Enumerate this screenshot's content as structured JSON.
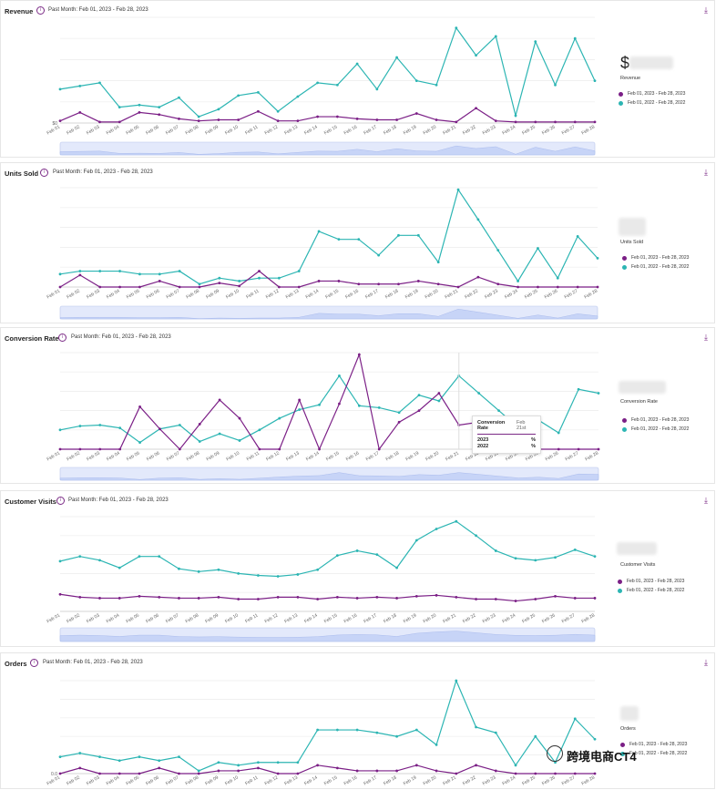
{
  "colors": {
    "y2023": "#7b1f86",
    "y2022": "#2cb5b3",
    "accent": "#7b2a86"
  },
  "period": "Past Month: Feb 01, 2023 - Feb 28, 2023",
  "legend": {
    "y2023": "Feb 01, 2023 - Feb 28, 2023",
    "y2022": "Feb 01, 2022 - Feb 28, 2022"
  },
  "tooltip": {
    "title": "Conversion Rate",
    "date": "Feb 21st",
    "row1": "2023",
    "row2": "2022",
    "pct": "%"
  },
  "watermark": "跨境电商CT4",
  "panels": [
    {
      "key": "revenue",
      "title": "Revenue",
      "value": "$",
      "value_label": "Revenue"
    },
    {
      "key": "units",
      "title": "Units Sold",
      "value": "",
      "value_label": "Units Sold"
    },
    {
      "key": "conversion",
      "title": "Conversion Rate",
      "value": "",
      "value_label": "Conversion Rate"
    },
    {
      "key": "visits",
      "title": "Customer Visits",
      "value": "",
      "value_label": "Customer Visits"
    },
    {
      "key": "orders",
      "title": "Orders",
      "value": "",
      "value_label": "Orders"
    }
  ],
  "chart_data": [
    {
      "type": "line",
      "title": "Revenue",
      "y_tick_labels": [
        "$0"
      ],
      "categories": [
        "Feb 01",
        "Feb 02",
        "Feb 03",
        "Feb 04",
        "Feb 05",
        "Feb 06",
        "Feb 07",
        "Feb 08",
        "Feb 09",
        "Feb 10",
        "Feb 11",
        "Feb 12",
        "Feb 13",
        "Feb 14",
        "Feb 15",
        "Feb 16",
        "Feb 17",
        "Feb 18",
        "Feb 19",
        "Feb 20",
        "Feb 21",
        "Feb 22",
        "Feb 23",
        "Feb 24",
        "Feb 25",
        "Feb 26",
        "Feb 27",
        "Feb 28"
      ],
      "ylim": [
        0,
        100
      ],
      "series": [
        {
          "name": "Feb 01, 2023 - Feb 28, 2023",
          "values": [
            2,
            10,
            1,
            1,
            10,
            8,
            4,
            2,
            3,
            3,
            11,
            2,
            2,
            6,
            6,
            4,
            3,
            3,
            9,
            3,
            1,
            14,
            2,
            1,
            1,
            1,
            1,
            1
          ]
        },
        {
          "name": "Feb 01, 2022 - Feb 28, 2022",
          "values": [
            32,
            35,
            38,
            15,
            17,
            15,
            24,
            6,
            13,
            26,
            29,
            11,
            25,
            38,
            36,
            56,
            32,
            62,
            40,
            36,
            90,
            64,
            82,
            7,
            77,
            36,
            80,
            40
          ]
        }
      ]
    },
    {
      "type": "line",
      "title": "Units Sold",
      "y_tick_labels": [],
      "categories": [
        "Feb 01",
        "Feb 02",
        "Feb 03",
        "Feb 04",
        "Feb 05",
        "Feb 06",
        "Feb 07",
        "Feb 08",
        "Feb 09",
        "Feb 10",
        "Feb 11",
        "Feb 12",
        "Feb 13",
        "Feb 14",
        "Feb 15",
        "Feb 16",
        "Feb 17",
        "Feb 18",
        "Feb 19",
        "Feb 20",
        "Feb 21",
        "Feb 22",
        "Feb 23",
        "Feb 24",
        "Feb 25",
        "Feb 26",
        "Feb 27",
        "Feb 28"
      ],
      "ylim": [
        0,
        100
      ],
      "series": [
        {
          "name": "Feb 01, 2023 - Feb 28, 2023",
          "values": [
            0,
            12,
            0,
            0,
            0,
            6,
            0,
            0,
            4,
            1,
            16,
            0,
            0,
            6,
            6,
            3,
            3,
            3,
            6,
            3,
            0,
            10,
            3,
            0,
            0,
            0,
            0,
            0
          ]
        },
        {
          "name": "Feb 01, 2022 - Feb 28, 2022",
          "values": [
            13,
            16,
            16,
            16,
            13,
            13,
            16,
            3,
            9,
            6,
            9,
            9,
            16,
            56,
            48,
            48,
            32,
            52,
            52,
            25,
            98,
            68,
            37,
            6,
            39,
            9,
            51,
            29
          ]
        }
      ]
    },
    {
      "type": "line",
      "title": "Conversion Rate",
      "y_tick_labels": [],
      "categories": [
        "Feb 01",
        "Feb 02",
        "Feb 03",
        "Feb 04",
        "Feb 05",
        "Feb 06",
        "Feb 07",
        "Feb 08",
        "Feb 09",
        "Feb 10",
        "Feb 11",
        "Feb 12",
        "Feb 13",
        "Feb 14",
        "Feb 15",
        "Feb 16",
        "Feb 17",
        "Feb 18",
        "Feb 19",
        "Feb 20",
        "Feb 21",
        "Feb 22",
        "Feb 23",
        "Feb 24",
        "Feb 25",
        "Feb 26",
        "Feb 27",
        "Feb 28"
      ],
      "ylim": [
        0,
        100
      ],
      "series": [
        {
          "name": "Feb 01, 2023 - Feb 28, 2023",
          "values": [
            0,
            0,
            0,
            0,
            44,
            21,
            0,
            26,
            51,
            32,
            0,
            0,
            51,
            0,
            47,
            98,
            0,
            28,
            40,
            58,
            25,
            28,
            0,
            0,
            0,
            0,
            0,
            0
          ]
        },
        {
          "name": "Feb 01, 2022 - Feb 28, 2022",
          "values": [
            20,
            24,
            25,
            22,
            7,
            21,
            25,
            8,
            16,
            9,
            20,
            32,
            41,
            46,
            76,
            45,
            43,
            38,
            56,
            50,
            76,
            58,
            40,
            22,
            30,
            17,
            62,
            58
          ]
        }
      ]
    },
    {
      "type": "line",
      "title": "Customer Visits",
      "y_tick_labels": [],
      "categories": [
        "Feb 01",
        "Feb 02",
        "Feb 03",
        "Feb 04",
        "Feb 05",
        "Feb 06",
        "Feb 07",
        "Feb 08",
        "Feb 09",
        "Feb 10",
        "Feb 11",
        "Feb 12",
        "Feb 13",
        "Feb 14",
        "Feb 15",
        "Feb 16",
        "Feb 17",
        "Feb 18",
        "Feb 19",
        "Feb 20",
        "Feb 21",
        "Feb 22",
        "Feb 23",
        "Feb 24",
        "Feb 25",
        "Feb 26",
        "Feb 27",
        "Feb 28"
      ],
      "ylim": [
        0,
        100
      ],
      "series": [
        {
          "name": "Feb 01, 2023 - Feb 28, 2023",
          "values": [
            18,
            15,
            14,
            14,
            16,
            15,
            14,
            14,
            15,
            13,
            13,
            15,
            15,
            13,
            15,
            14,
            15,
            14,
            16,
            17,
            15,
            13,
            13,
            11,
            13,
            16,
            14,
            14
          ]
        },
        {
          "name": "Feb 01, 2022 - Feb 28, 2022",
          "values": [
            53,
            58,
            54,
            46,
            58,
            58,
            45,
            42,
            44,
            40,
            38,
            37,
            39,
            44,
            59,
            64,
            60,
            46,
            75,
            87,
            95,
            80,
            64,
            56,
            54,
            57,
            65,
            58
          ]
        }
      ]
    },
    {
      "type": "line",
      "title": "Orders",
      "y_tick_labels": [
        "0.0"
      ],
      "categories": [
        "Feb 01",
        "Feb 02",
        "Feb 03",
        "Feb 04",
        "Feb 05",
        "Feb 06",
        "Feb 07",
        "Feb 08",
        "Feb 09",
        "Feb 10",
        "Feb 11",
        "Feb 12",
        "Feb 13",
        "Feb 14",
        "Feb 15",
        "Feb 16",
        "Feb 17",
        "Feb 18",
        "Feb 19",
        "Feb 20",
        "Feb 21",
        "Feb 22",
        "Feb 23",
        "Feb 24",
        "Feb 25",
        "Feb 26",
        "Feb 27",
        "Feb 28"
      ],
      "ylim": [
        0,
        100
      ],
      "series": [
        {
          "name": "Feb 01, 2023 - Feb 28, 2023",
          "values": [
            0,
            6,
            0,
            0,
            0,
            6,
            0,
            0,
            3,
            3,
            6,
            0,
            0,
            9,
            6,
            3,
            3,
            3,
            9,
            3,
            0,
            9,
            3,
            0,
            0,
            0,
            0,
            0
          ]
        },
        {
          "name": "Feb 01, 2022 - Feb 28, 2022",
          "values": [
            18,
            22,
            18,
            14,
            18,
            14,
            18,
            3,
            12,
            9,
            12,
            12,
            12,
            47,
            47,
            47,
            44,
            40,
            47,
            31,
            100,
            50,
            44,
            9,
            40,
            12,
            59,
            37
          ]
        }
      ]
    }
  ]
}
